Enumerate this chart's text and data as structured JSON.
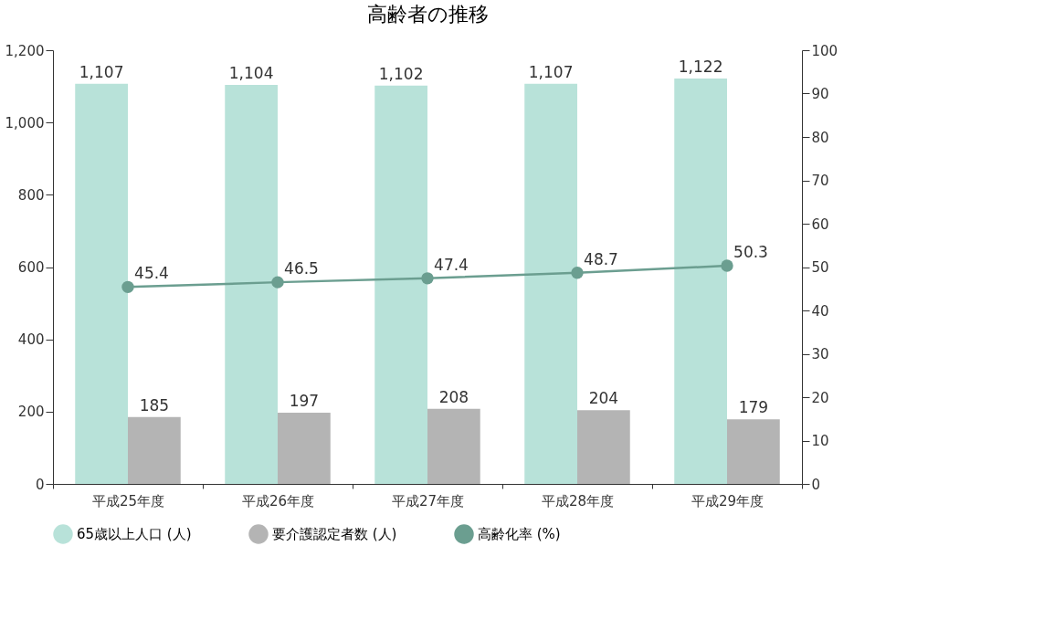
{
  "chart_data": {
    "type": "bar",
    "title": "高齢者の推移",
    "categories": [
      "平成25年度",
      "平成26年度",
      "平成27年度",
      "平成28年度",
      "平成29年度"
    ],
    "series": [
      {
        "name": "65歳以上人口 (人)",
        "color": "#b8e2d9",
        "values": [
          1107,
          1104,
          1102,
          1107,
          1122
        ],
        "value_labels": [
          "1,107",
          "1,104",
          "1,102",
          "1,107",
          "1,122"
        ]
      },
      {
        "name": "要介護認定者数 (人)",
        "color": "#b4b4b4",
        "values": [
          185,
          197,
          208,
          204,
          179
        ],
        "value_labels": [
          "185",
          "197",
          "208",
          "204",
          "179"
        ]
      },
      {
        "name": "高齢化率 (%)",
        "color": "#6b9e90",
        "type": "line",
        "axis": "y2",
        "marker": "circle",
        "values": [
          45.4,
          46.5,
          47.4,
          48.7,
          50.3
        ],
        "value_labels": [
          "45.4",
          "46.5",
          "47.4",
          "48.7",
          "50.3"
        ]
      }
    ],
    "ylim": [
      0,
      1200
    ],
    "yticks": [
      {
        "value": 0,
        "label": "0"
      },
      {
        "value": 200,
        "label": "200"
      },
      {
        "value": 400,
        "label": "400"
      },
      {
        "value": 600,
        "label": "600"
      },
      {
        "value": 800,
        "label": "800"
      },
      {
        "value": 1000,
        "label": "1,000"
      },
      {
        "value": 1200,
        "label": "1,200"
      }
    ],
    "y2lim": [
      0,
      100
    ],
    "y2ticks": [
      0,
      10,
      20,
      30,
      40,
      50,
      60,
      70,
      80,
      90,
      100
    ],
    "legend": "bottom",
    "grid": false
  }
}
